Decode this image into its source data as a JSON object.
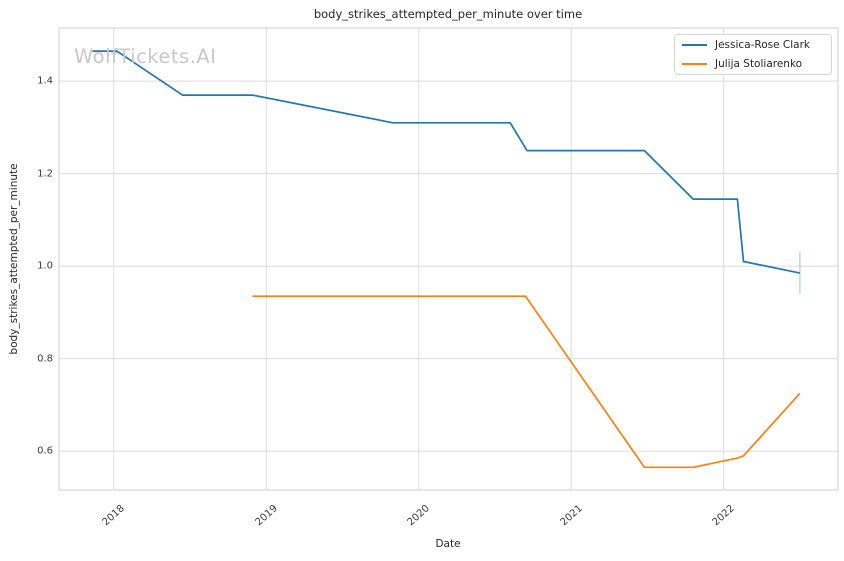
{
  "title": "body_strikes_attempted_per_minute over time",
  "watermark": "WolfTickets.AI",
  "axes": {
    "x_label": "Date",
    "y_label": "body_strikes_attempted_per_minute"
  },
  "legend": {
    "position": "upper right",
    "entries": [
      {
        "label": "Jessica-Rose Clark",
        "color": "#1f77b4"
      },
      {
        "label": "Julija Stoliarenko",
        "color": "#ff7f0e"
      }
    ]
  },
  "colors": {
    "blue_series": "#1f77b4",
    "orange_series": "#ff7f0e",
    "grid": "#dcdcdc",
    "spine": "#cfcfcf",
    "title_text": "#262626",
    "tick_text": "#3a3a3a",
    "watermark": "#c8c8c8"
  },
  "chart_data": {
    "type": "line",
    "title": "body_strikes_attempted_per_minute over time",
    "xlabel": "Date",
    "ylabel": "body_strikes_attempted_per_minute",
    "grid": true,
    "legend_position": "upper right",
    "xlim": [
      2017.64,
      2022.75
    ],
    "ylim": [
      0.516,
      1.515
    ],
    "x_ticks": [
      2018,
      2019,
      2020,
      2021,
      2022
    ],
    "x_tick_labels": [
      "2018",
      "2019",
      "2020",
      "2021",
      "2022"
    ],
    "y_ticks": [
      1.4,
      1.2,
      1.0,
      0.8,
      0.6
    ],
    "y_tick_labels": [
      "1.4",
      "1.2",
      "1.0",
      "0.8",
      "0.6"
    ],
    "series": [
      {
        "name": "Jessica-Rose Clark",
        "color": "#1f77b4",
        "x": [
          2017.86,
          2018.02,
          2018.45,
          2018.91,
          2019.83,
          2020.6,
          2020.71,
          2021.48,
          2021.8,
          2022.09,
          2022.13,
          2022.5
        ],
        "y": [
          1.465,
          1.465,
          1.37,
          1.37,
          1.31,
          1.31,
          1.25,
          1.25,
          1.145,
          1.145,
          1.01,
          0.985
        ],
        "end_tick": {
          "x": 2022.5,
          "y_low": 0.94,
          "y_high": 1.03
        }
      },
      {
        "name": "Julija Stoliarenko",
        "color": "#ff7f0e",
        "x": [
          2018.91,
          2020.7,
          2021.48,
          2021.8,
          2022.09,
          2022.13,
          2022.5
        ],
        "y": [
          0.935,
          0.935,
          0.565,
          0.565,
          0.585,
          0.59,
          0.725
        ]
      }
    ]
  }
}
